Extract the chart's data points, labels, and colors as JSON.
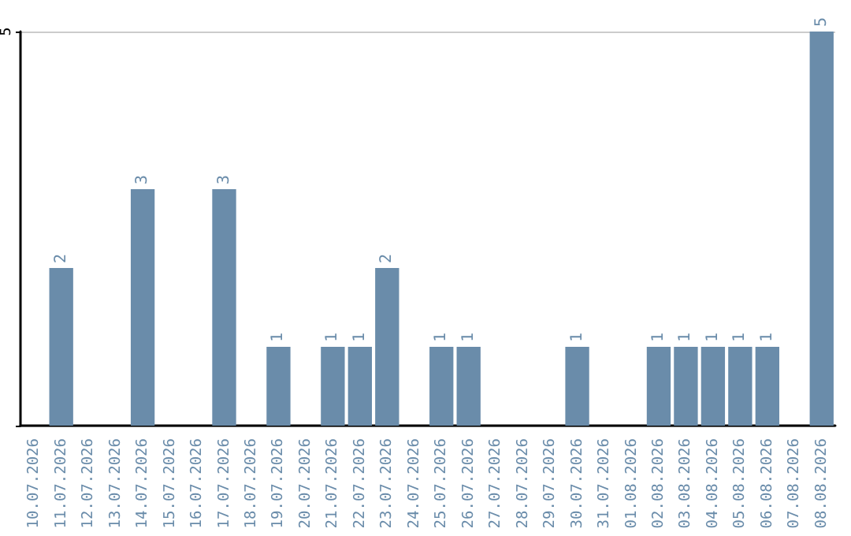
{
  "chart_data": {
    "type": "bar",
    "categories": [
      "10.07.2026",
      "11.07.2026",
      "12.07.2026",
      "13.07.2026",
      "14.07.2026",
      "15.07.2026",
      "16.07.2026",
      "17.07.2026",
      "18.07.2026",
      "19.07.2026",
      "20.07.2026",
      "21.07.2026",
      "22.07.2026",
      "23.07.2026",
      "24.07.2026",
      "25.07.2026",
      "26.07.2026",
      "27.07.2026",
      "28.07.2026",
      "29.07.2026",
      "30.07.2026",
      "31.07.2026",
      "01.08.2026",
      "02.08.2026",
      "03.08.2026",
      "04.08.2026",
      "05.08.2026",
      "06.08.2026",
      "07.08.2026",
      "08.08.2026"
    ],
    "values": [
      0,
      2,
      0,
      0,
      3,
      0,
      0,
      3,
      0,
      1,
      0,
      1,
      1,
      2,
      0,
      1,
      1,
      0,
      0,
      0,
      1,
      0,
      0,
      1,
      1,
      1,
      1,
      1,
      0,
      5
    ],
    "value_labels": [
      null,
      "2",
      null,
      null,
      "3",
      null,
      null,
      "3",
      null,
      "1",
      null,
      "1",
      "1",
      "2",
      null,
      "1",
      "1",
      null,
      null,
      null,
      "1",
      null,
      null,
      "1",
      "1",
      "1",
      "1",
      "1",
      null,
      "5"
    ],
    "color": "#6a8caa",
    "ylim": [
      0,
      5
    ],
    "yticks": [
      {
        "value": 0,
        "label": null
      },
      5
    ],
    "grid": "y"
  }
}
